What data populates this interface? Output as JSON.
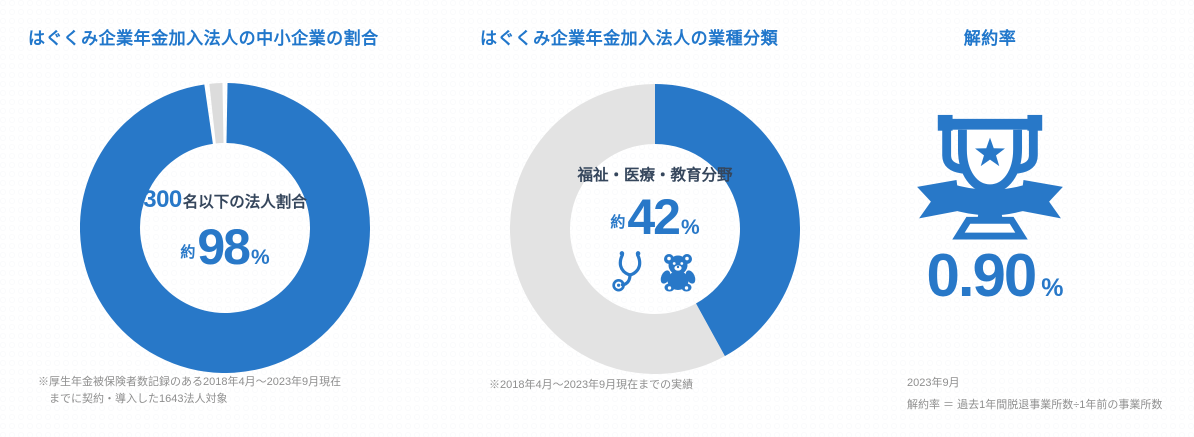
{
  "colors": {
    "accent": "#2878c8",
    "dark_label": "#35465c",
    "muted_text": "#8f8f8f",
    "gray_slice_1": "#dcdcdc",
    "gray_slice_2": "#e3e3e3"
  },
  "panels": {
    "sme": {
      "title": "はぐくみ企業年金加入法人の中小企業の割合",
      "center_number": "300",
      "center_label": "名以下の法人割合",
      "approx": "約",
      "value": "98",
      "unit": "%",
      "footnote_line1": "※厚生年金被保険者数記録のある2018年4月～2023年9月現在",
      "footnote_line2": "までに契約・導入した1643法人対象"
    },
    "industry": {
      "title": "はぐくみ企業年金加入法人の業種分類",
      "center_label": "福祉・医療・教育分野",
      "approx": "約",
      "value": "42",
      "unit": "%",
      "icons": [
        "stethoscope-icon",
        "teddy-bear-icon"
      ],
      "footnote": "※2018年4月～2023年9月現在までの実績"
    },
    "cancellation": {
      "title": "解約率",
      "value": "0.90",
      "unit": "%",
      "footnote_line1": "2023年9月",
      "footnote_line2": "解約率 ＝ 過去1年間脱退事業所数÷1年前の事業所数"
    }
  },
  "chart_data": [
    {
      "type": "pie",
      "variant": "donut",
      "title": "はぐくみ企業年金加入法人の中小企業の割合",
      "labels": [
        "300名以下の法人割合",
        ""
      ],
      "values": [
        98,
        2
      ],
      "colors": [
        "#2878c8",
        "#dcdcdc"
      ],
      "pad_deg": 2,
      "start_angle_deg": 0,
      "direction": "clockwise",
      "center_text": "300名以下の法人割合 約98%"
    },
    {
      "type": "pie",
      "variant": "donut",
      "title": "はぐくみ企業年金加入法人の業種分類",
      "labels": [
        "福祉・医療・教育分野",
        ""
      ],
      "values": [
        42,
        58
      ],
      "colors": [
        "#2878c8",
        "#e3e3e3"
      ],
      "pad_deg": 0,
      "start_angle_deg": 0,
      "direction": "clockwise",
      "center_text": "福祉・医療・教育分野 約42%"
    },
    {
      "type": "stat",
      "title": "解約率",
      "value": 0.9,
      "unit": "%",
      "as_of": "2023年9月",
      "formula": "解約率 ＝ 過去1年間脱退事業所数÷1年前の事業所数"
    }
  ]
}
